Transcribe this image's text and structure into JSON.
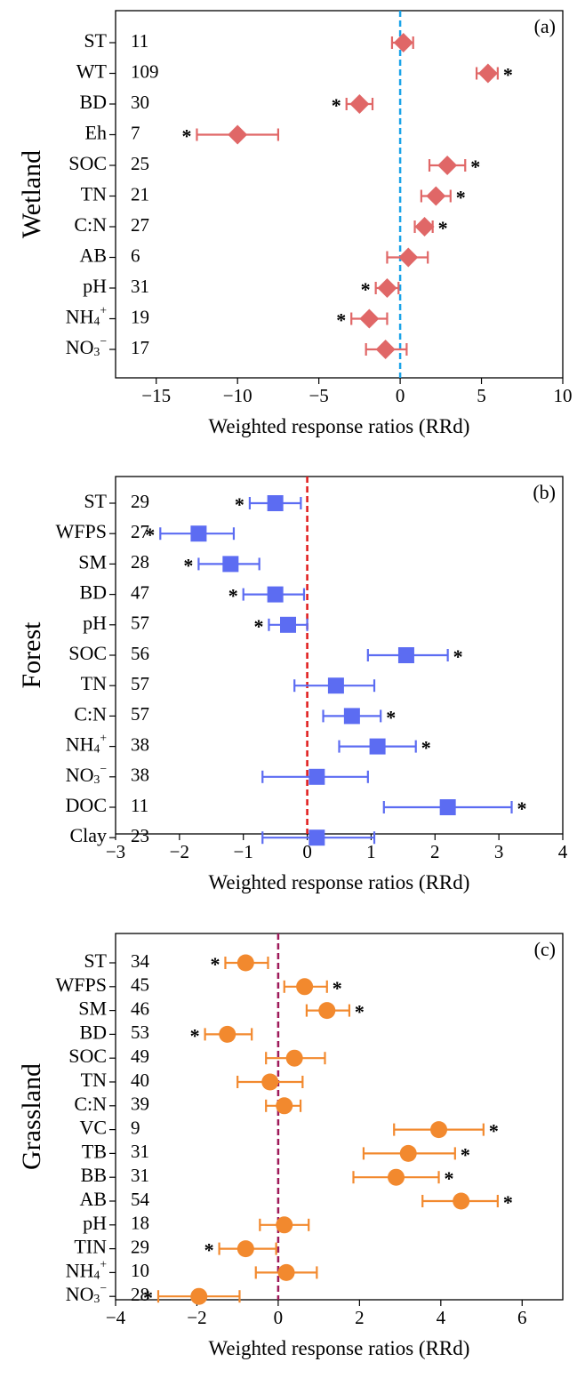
{
  "chart_data": [
    {
      "type": "forest",
      "panel_label": "(a)",
      "ylabel": "Wetland",
      "xlabel": "Weighted response ratios (RRd)",
      "xlim": [
        -17.5,
        10
      ],
      "xticks": [
        -15,
        -10,
        -5,
        0,
        5,
        10
      ],
      "xtick_labels": [
        "−15",
        "−10",
        "−5",
        "0",
        "5",
        "10"
      ],
      "zero_line_color": "#1aa3e8",
      "marker": "diamond",
      "marker_color": "#e06767",
      "categories": [
        "ST",
        "WT",
        "BD",
        "Eh",
        "SOC",
        "TN",
        "C:N",
        "AB",
        "pH",
        "NH4+",
        "NO3−"
      ],
      "n": [
        "11",
        "109",
        "30",
        "7",
        "25",
        "21",
        "27",
        "6",
        "31",
        "19",
        "17"
      ],
      "mean": [
        0.2,
        5.4,
        -2.5,
        -10.0,
        2.9,
        2.2,
        1.5,
        0.5,
        -0.8,
        -1.9,
        -0.9
      ],
      "ci_low": [
        -0.5,
        4.7,
        -3.3,
        -12.5,
        1.8,
        1.3,
        0.9,
        -0.8,
        -1.5,
        -3.0,
        -2.1
      ],
      "ci_high": [
        0.8,
        6.0,
        -1.7,
        -7.5,
        4.0,
        3.1,
        2.0,
        1.7,
        -0.1,
        -0.8,
        0.4
      ],
      "significant": [
        false,
        true,
        true,
        true,
        true,
        true,
        true,
        false,
        true,
        true,
        false
      ]
    },
    {
      "type": "forest",
      "panel_label": "(b)",
      "ylabel": "Forest",
      "xlabel": "Weighted response ratios (RRd)",
      "xlim": [
        -3,
        4
      ],
      "xticks": [
        -3,
        -2,
        -1,
        0,
        1,
        2,
        3,
        4
      ],
      "xtick_labels": [
        "−3",
        "−2",
        "−1",
        "0",
        "1",
        "2",
        "3",
        "4"
      ],
      "zero_line_color": "#e01b1b",
      "marker": "square",
      "marker_color": "#5c6cf2",
      "categories": [
        "ST",
        "WFPS",
        "SM",
        "BD",
        "pH",
        "SOC",
        "TN",
        "C:N",
        "NH4+",
        "NO3−",
        "DOC",
        "Clay"
      ],
      "n": [
        "29",
        "27",
        "28",
        "47",
        "57",
        "56",
        "57",
        "57",
        "38",
        "38",
        "11",
        "23"
      ],
      "mean": [
        -0.5,
        -1.7,
        -1.2,
        -0.5,
        -0.3,
        1.55,
        0.45,
        0.7,
        1.1,
        0.15,
        2.2,
        0.15
      ],
      "ci_low": [
        -0.9,
        -2.3,
        -1.7,
        -1.0,
        -0.6,
        0.95,
        -0.2,
        0.25,
        0.5,
        -0.7,
        1.2,
        -0.7
      ],
      "ci_high": [
        -0.1,
        -1.15,
        -0.75,
        -0.05,
        0.0,
        2.2,
        1.05,
        1.15,
        1.7,
        0.95,
        3.2,
        1.05
      ],
      "significant": [
        true,
        true,
        true,
        true,
        true,
        true,
        false,
        true,
        true,
        false,
        true,
        false
      ]
    },
    {
      "type": "forest",
      "panel_label": "(c)",
      "ylabel": "Grassland",
      "xlabel": "Weighted response ratios (RRd)",
      "xlim": [
        -4,
        7
      ],
      "xticks": [
        -4,
        -2,
        0,
        2,
        4,
        6
      ],
      "xtick_labels": [
        "−4",
        "−2",
        "0",
        "2",
        "4",
        "6"
      ],
      "zero_line_color": "#9e1a5a",
      "marker": "circle",
      "marker_color": "#f2892e",
      "categories": [
        "ST",
        "WFPS",
        "SM",
        "BD",
        "SOC",
        "TN",
        "C:N",
        "VC",
        "TB",
        "BB",
        "AB",
        "pH",
        "TIN",
        "NH4+",
        "NO3−"
      ],
      "n": [
        "34",
        "45",
        "46",
        "53",
        "49",
        "40",
        "39",
        "9",
        "31",
        "31",
        "54",
        "18",
        "29",
        "10",
        "28"
      ],
      "mean": [
        -0.8,
        0.65,
        1.2,
        -1.25,
        0.4,
        -0.2,
        0.15,
        3.95,
        3.2,
        2.9,
        4.5,
        0.15,
        -0.8,
        0.2,
        -1.95
      ],
      "ci_low": [
        -1.3,
        0.15,
        0.7,
        -1.8,
        -0.3,
        -1.0,
        -0.3,
        2.85,
        2.1,
        1.85,
        3.55,
        -0.45,
        -1.45,
        -0.55,
        -2.95
      ],
      "ci_high": [
        -0.25,
        1.2,
        1.75,
        -0.65,
        1.15,
        0.6,
        0.55,
        5.05,
        4.35,
        3.95,
        5.4,
        0.75,
        -0.05,
        0.95,
        -0.95
      ],
      "significant": [
        true,
        true,
        true,
        true,
        false,
        false,
        false,
        true,
        true,
        true,
        true,
        false,
        true,
        false,
        true
      ]
    }
  ]
}
